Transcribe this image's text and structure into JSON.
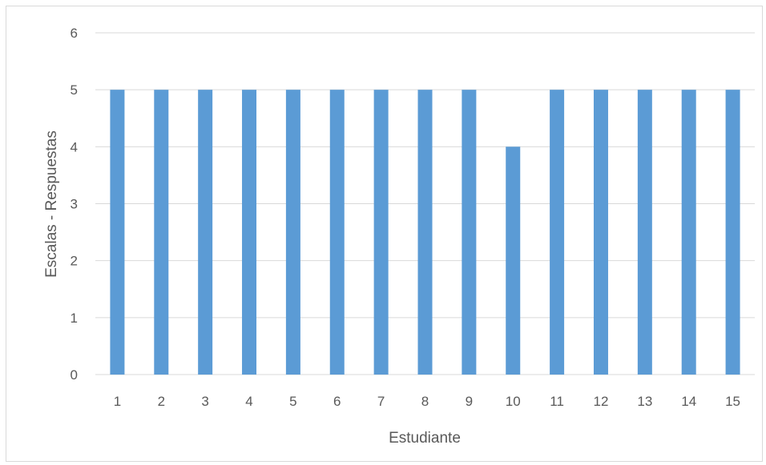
{
  "chart_data": {
    "type": "bar",
    "categories": [
      "1",
      "2",
      "3",
      "4",
      "5",
      "6",
      "7",
      "8",
      "9",
      "10",
      "11",
      "12",
      "13",
      "14",
      "15"
    ],
    "values": [
      5,
      5,
      5,
      5,
      5,
      5,
      5,
      5,
      5,
      4,
      5,
      5,
      5,
      5,
      5
    ],
    "xlabel": "Estudiante",
    "ylabel": "Escalas - Respuestas",
    "ylim": [
      0,
      6
    ],
    "yticks": [
      "0",
      "1",
      "2",
      "3",
      "4",
      "5",
      "6"
    ],
    "grid": true,
    "legend": "none",
    "bar_color": "#5b9bd5",
    "grid_color": "#d9d9d9",
    "text_color": "#595959"
  }
}
